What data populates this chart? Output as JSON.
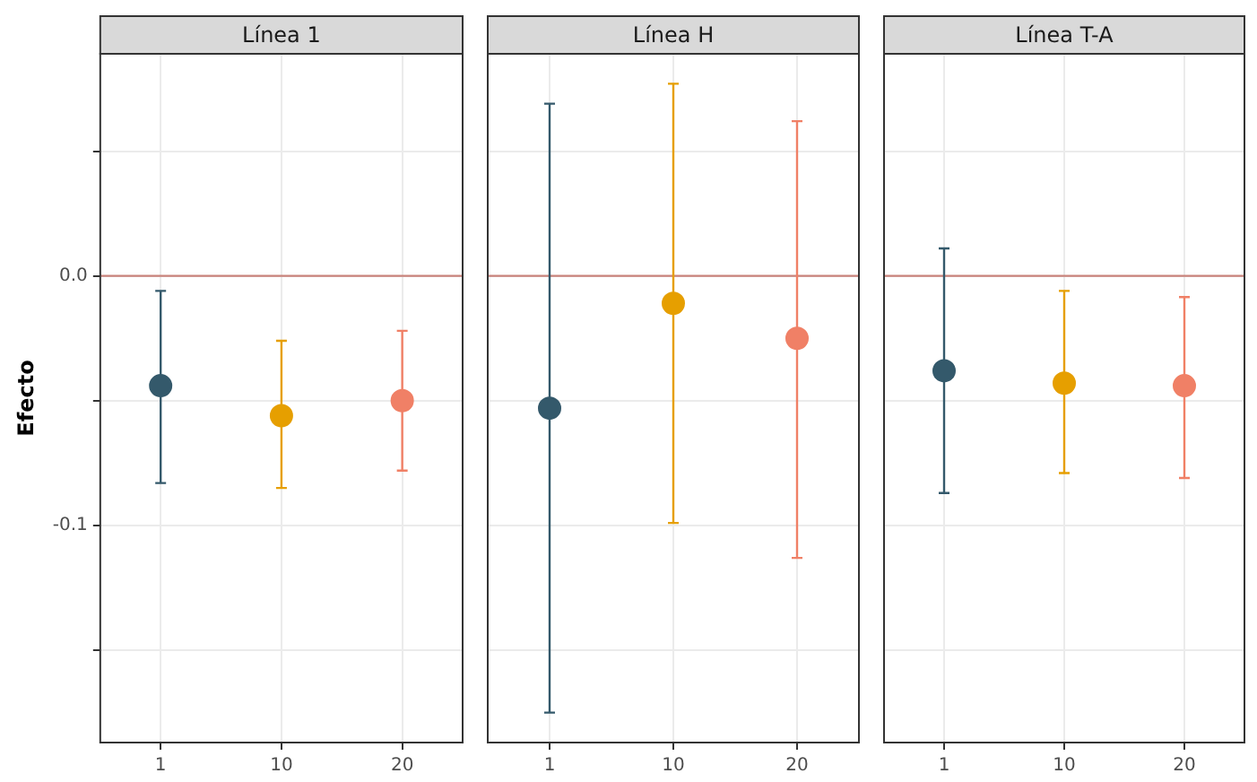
{
  "chart_data": [
    {
      "type": "scatter",
      "title": "Línea 1",
      "ylabel": "Efecto",
      "categories": [
        "1",
        "10",
        "20"
      ],
      "values": [
        -0.044,
        -0.056,
        -0.05
      ],
      "colors": [
        "#34596b",
        "#e69f00",
        "#f08066"
      ],
      "errors": [
        [
          -0.083,
          -0.006
        ],
        [
          -0.085,
          -0.026
        ],
        [
          -0.078,
          -0.022
        ]
      ],
      "ylim": [
        -0.187,
        0.089
      ],
      "yticks": [
        {
          "value": -0.15,
          "label": null
        },
        {
          "value": -0.1,
          "label": "-0.1"
        },
        {
          "value": -0.05,
          "label": null
        },
        {
          "value": 0,
          "label": "0.0"
        },
        {
          "value": 0.05,
          "label": null
        }
      ],
      "ref_lines": [
        {
          "axis": "y",
          "value": 0,
          "color": "#c9837b"
        }
      ],
      "grid": true,
      "marker": "circle"
    },
    {
      "type": "scatter",
      "title": "Línea H",
      "categories": [
        "1",
        "10",
        "20"
      ],
      "values": [
        -0.053,
        -0.011,
        -0.025
      ],
      "colors": [
        "#34596b",
        "#e69f00",
        "#f08066"
      ],
      "errors": [
        [
          -0.175,
          0.069
        ],
        [
          -0.099,
          0.077
        ],
        [
          -0.113,
          0.062
        ]
      ],
      "ylim": [
        -0.187,
        0.089
      ],
      "yticks": [
        -0.15,
        -0.1,
        -0.05,
        0,
        0.05
      ],
      "ref_lines": [
        {
          "axis": "y",
          "value": 0,
          "color": "#c9837b"
        }
      ],
      "grid": true,
      "marker": "circle",
      "tick_labels": "x"
    },
    {
      "type": "scatter",
      "title": "Línea T-A",
      "categories": [
        "1",
        "10",
        "20"
      ],
      "values": [
        -0.038,
        -0.043,
        -0.044
      ],
      "colors": [
        "#34596b",
        "#e69f00",
        "#f08066"
      ],
      "errors": [
        [
          -0.087,
          0.011
        ],
        [
          -0.079,
          -0.006
        ],
        [
          -0.081,
          -0.0085
        ]
      ],
      "ylim": [
        -0.187,
        0.089
      ],
      "yticks": [
        -0.15,
        -0.1,
        -0.05,
        0,
        0.05
      ],
      "ref_lines": [
        {
          "axis": "y",
          "value": 0,
          "color": "#c9837b"
        }
      ],
      "grid": true,
      "marker": "circle",
      "tick_labels": "x"
    }
  ]
}
